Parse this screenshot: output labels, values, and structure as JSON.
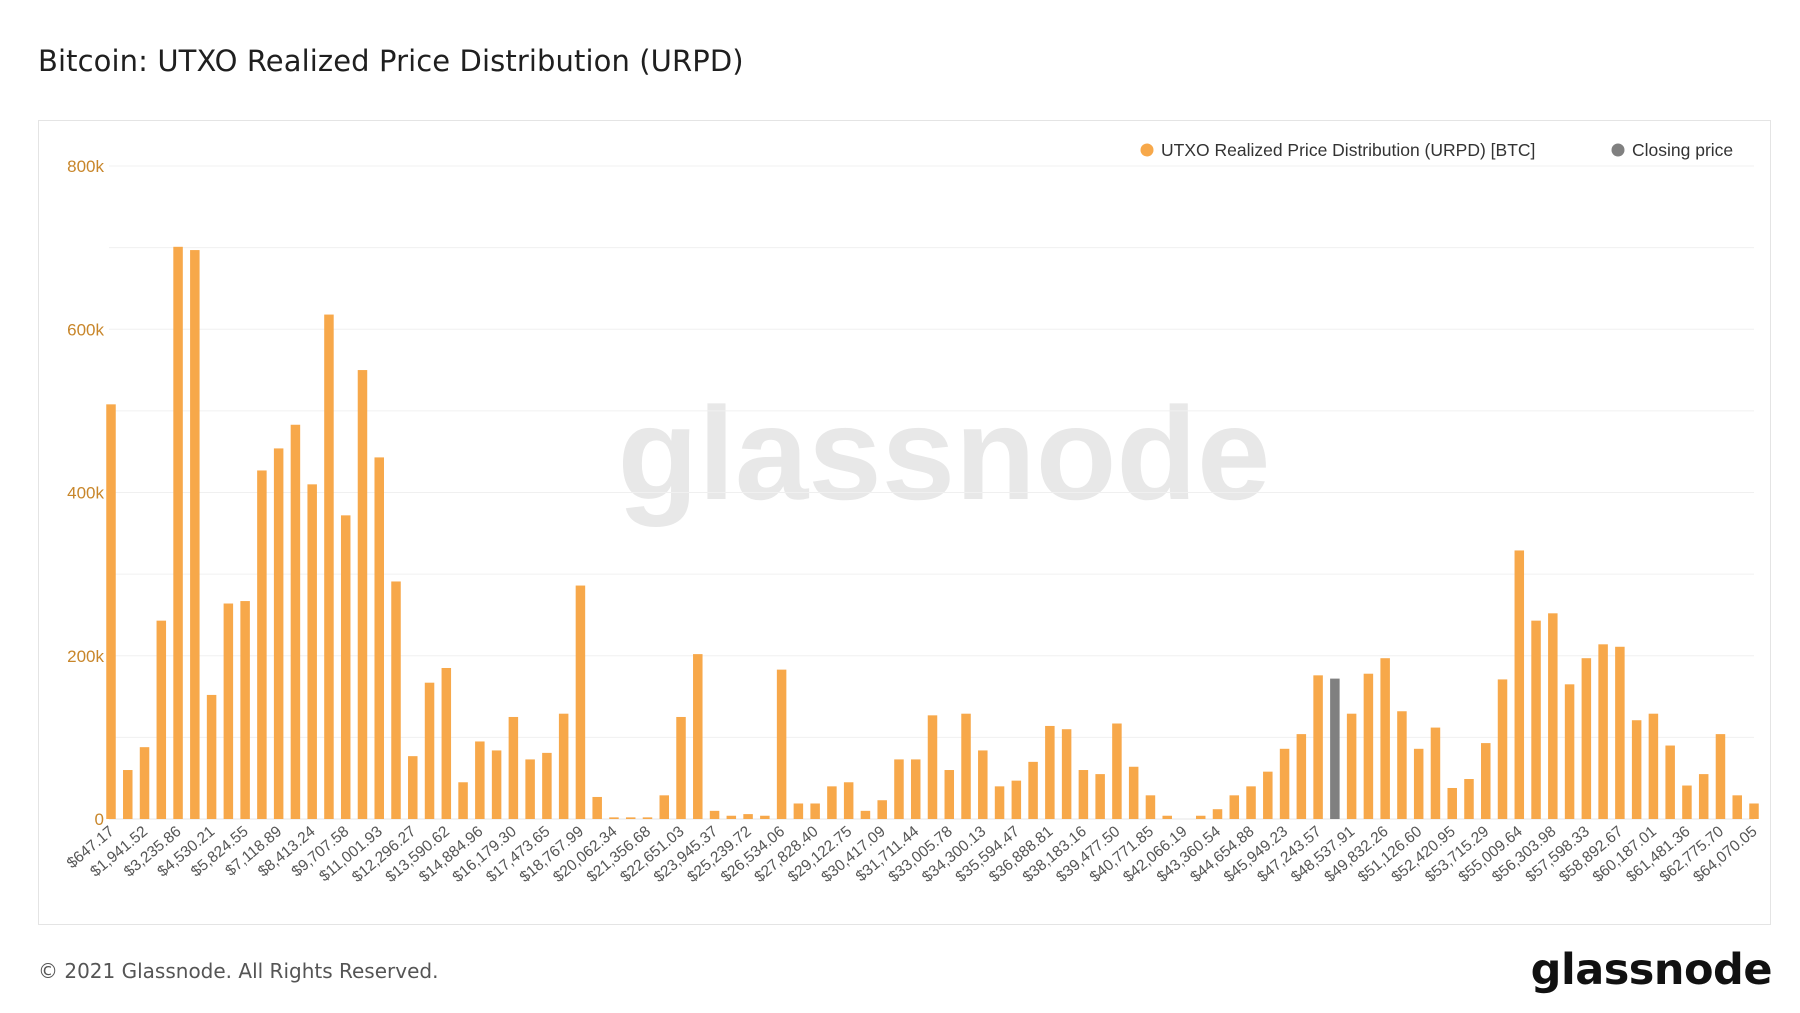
{
  "title": "Bitcoin: UTXO Realized Price Distribution (URPD)",
  "footer": {
    "copyright": "© 2021 Glassnode. All Rights Reserved.",
    "logo": "glassnode"
  },
  "watermark": "glassnode",
  "colors": {
    "bar": "#f7a84a",
    "closing": "#808080",
    "axis_text": "#c8862a",
    "grid": "#f0f0f0"
  },
  "chart_data": {
    "type": "bar",
    "title": "Bitcoin: UTXO Realized Price Distribution (URPD)",
    "xlabel": "",
    "ylabel": "",
    "ylim": [
      0,
      800000
    ],
    "yticks": [
      0,
      200000,
      400000,
      600000,
      800000
    ],
    "ytick_labels": [
      "0",
      "200k",
      "400k",
      "600k",
      "800k"
    ],
    "grid": true,
    "legend_position": "top-right",
    "legend": [
      {
        "label": "UTXO Realized Price Distribution (URPD) [BTC]",
        "color": "#f7a84a"
      },
      {
        "label": "Closing price",
        "color": "#808080"
      }
    ],
    "closing_price_index": 73,
    "x_tick_labels": [
      "$647.17",
      "$1,941.52",
      "$3,235.86",
      "$4,530.21",
      "$5,824.55",
      "$7,118.89",
      "$8,413.24",
      "$9,707.58",
      "$11,001.93",
      "$12,296.27",
      "$13,590.62",
      "$14,884.96",
      "$16,179.30",
      "$17,473.65",
      "$18,767.99",
      "$20,062.34",
      "$21,356.68",
      "$22,651.03",
      "$23,945.37",
      "$25,239.72",
      "$26,534.06",
      "$27,828.40",
      "$29,122.75",
      "$30,417.09",
      "$31,711.44",
      "$33,005.78",
      "$34,300.13",
      "$35,594.47",
      "$36,888.81",
      "$38,183.16",
      "$39,477.50",
      "$40,771.85",
      "$42,066.19",
      "$43,360.54",
      "$44,654.88",
      "$45,949.23",
      "$47,243.57",
      "$48,537.91",
      "$49,832.26",
      "$51,126.60",
      "$52,420.95",
      "$53,715.29",
      "$55,009.64",
      "$56,303.98",
      "$57,598.33",
      "$58,892.67",
      "$60,187.01",
      "$61,481.36",
      "$62,775.70",
      "$64,070.05"
    ],
    "values": [
      508000,
      60000,
      88000,
      243000,
      701000,
      697000,
      152000,
      264000,
      267000,
      427000,
      454000,
      483000,
      410000,
      618000,
      372000,
      550000,
      443000,
      291000,
      77000,
      167000,
      185000,
      45000,
      95000,
      84000,
      125000,
      73000,
      81000,
      129000,
      286000,
      27000,
      2000,
      2000,
      2000,
      29000,
      125000,
      202000,
      10000,
      4000,
      6000,
      4000,
      183000,
      19000,
      19000,
      40000,
      45000,
      10000,
      23000,
      73000,
      73000,
      127000,
      60000,
      129000,
      84000,
      40000,
      47000,
      70000,
      114000,
      110000,
      60000,
      55000,
      117000,
      64000,
      29000,
      4000,
      0,
      4000,
      12000,
      29000,
      40000,
      58000,
      86000,
      104000,
      176000,
      172000,
      129000,
      178000,
      197000,
      132000,
      86000,
      112000,
      38000,
      49000,
      93000,
      171000,
      329000,
      243000,
      252000,
      165000,
      197000,
      214000,
      211000,
      121000,
      129000,
      90000,
      41000,
      55000,
      104000,
      29000,
      19000
    ]
  }
}
